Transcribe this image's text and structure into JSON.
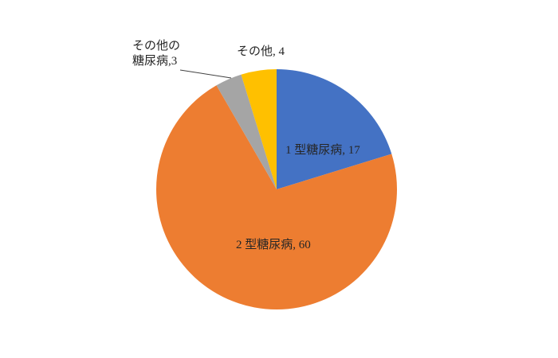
{
  "chart_data": {
    "type": "pie",
    "title": "",
    "legend": "none",
    "background": "#FFFFFF",
    "label_color": "#262626",
    "leader_line_color": "#404040",
    "start_angle_deg": 0,
    "direction": "clockwise",
    "total": 84,
    "slices": [
      {
        "name": "1型糖尿病",
        "value": 17,
        "color": "#4472C4",
        "label_text": "1 型糖尿病, 17",
        "label_placement": "inside"
      },
      {
        "name": "2型糖尿病",
        "value": 60,
        "color": "#ED7D31",
        "label_text": "2 型糖尿病, 60",
        "label_placement": "inside"
      },
      {
        "name": "その他の糖尿病",
        "value": 3,
        "color": "#A5A5A5",
        "label_text": "その他の\n糖尿病,3",
        "label_placement": "outside-with-leader-line"
      },
      {
        "name": "その他",
        "value": 4,
        "color": "#FFC000",
        "label_text": "その他, 4",
        "label_placement": "outside"
      }
    ]
  }
}
